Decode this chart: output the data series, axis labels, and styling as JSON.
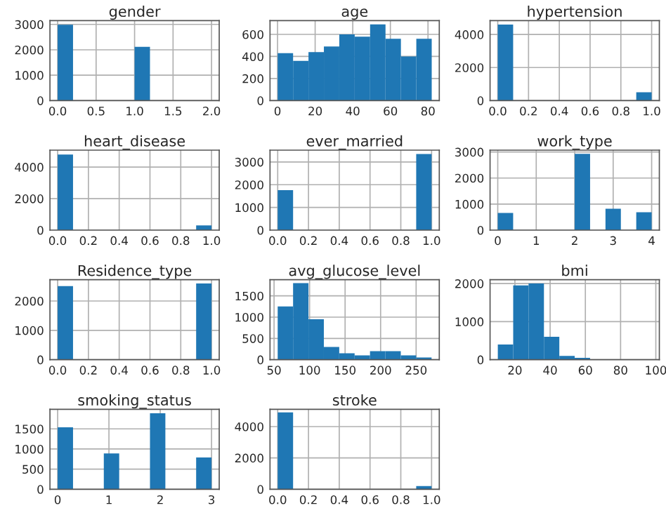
{
  "chart_data": [
    {
      "type": "histogram",
      "title": "gender",
      "bins": [
        0,
        0.2,
        0.4,
        0.6,
        0.8,
        1.0,
        1.2,
        1.4,
        1.6,
        1.8,
        2.0
      ],
      "values": [
        2990,
        0,
        0,
        0,
        0,
        2120,
        0,
        0,
        0,
        0
      ],
      "xlim": [
        -0.1,
        2.1
      ],
      "ylim": [
        0,
        3150
      ],
      "xticks": [
        {
          "value": 0,
          "label": "0.0"
        },
        {
          "value": 0.5,
          "label": "0.5"
        },
        {
          "value": 1,
          "label": "1.0"
        },
        {
          "value": 1.5,
          "label": "1.5"
        },
        {
          "value": 2,
          "label": "2.0"
        }
      ],
      "yticks": [
        0,
        1000,
        2000,
        3000
      ],
      "grid": true,
      "color": "#1f77b4"
    },
    {
      "type": "histogram",
      "title": "age",
      "bins": [
        0.08,
        8.27,
        16.46,
        24.65,
        32.84,
        41.03,
        49.22,
        57.41,
        65.6,
        73.79,
        81.98
      ],
      "values": [
        430,
        360,
        440,
        490,
        600,
        580,
        690,
        560,
        400,
        560
      ],
      "xlim": [
        -4,
        86
      ],
      "ylim": [
        0,
        725
      ],
      "xticks": [
        0,
        20,
        40,
        60,
        80
      ],
      "yticks": [
        0,
        200,
        400,
        600
      ],
      "grid": true,
      "color": "#1f77b4"
    },
    {
      "type": "histogram",
      "title": "hypertension",
      "bins": [
        0,
        0.1,
        0.2,
        0.3,
        0.4,
        0.5,
        0.6,
        0.7,
        0.8,
        0.9,
        1.0
      ],
      "values": [
        4600,
        0,
        0,
        0,
        0,
        0,
        0,
        0,
        0,
        500
      ],
      "xlim": [
        -0.05,
        1.05
      ],
      "ylim": [
        0,
        4840
      ],
      "xticks": [
        {
          "value": 0,
          "label": "0.0"
        },
        {
          "value": 0.2,
          "label": "0.2"
        },
        {
          "value": 0.4,
          "label": "0.4"
        },
        {
          "value": 0.6,
          "label": "0.6"
        },
        {
          "value": 0.8,
          "label": "0.8"
        },
        {
          "value": 1,
          "label": "1.0"
        }
      ],
      "yticks": [
        0,
        2000,
        4000
      ],
      "grid": true,
      "color": "#1f77b4"
    },
    {
      "type": "histogram",
      "title": "heart_disease",
      "bins": [
        0,
        0.1,
        0.2,
        0.3,
        0.4,
        0.5,
        0.6,
        0.7,
        0.8,
        0.9,
        1.0
      ],
      "values": [
        4800,
        0,
        0,
        0,
        0,
        0,
        0,
        0,
        0,
        300
      ],
      "xlim": [
        -0.05,
        1.05
      ],
      "ylim": [
        0,
        5075
      ],
      "xticks": [
        {
          "value": 0,
          "label": "0.0"
        },
        {
          "value": 0.2,
          "label": "0.2"
        },
        {
          "value": 0.4,
          "label": "0.4"
        },
        {
          "value": 0.6,
          "label": "0.6"
        },
        {
          "value": 0.8,
          "label": "0.8"
        },
        {
          "value": 1,
          "label": "1.0"
        }
      ],
      "yticks": [
        0,
        2000,
        4000
      ],
      "grid": true,
      "color": "#1f77b4"
    },
    {
      "type": "histogram",
      "title": "ever_married",
      "bins": [
        0,
        0.1,
        0.2,
        0.3,
        0.4,
        0.5,
        0.6,
        0.7,
        0.8,
        0.9,
        1.0
      ],
      "values": [
        1760,
        0,
        0,
        0,
        0,
        0,
        0,
        0,
        0,
        3350
      ],
      "xlim": [
        -0.05,
        1.05
      ],
      "ylim": [
        0,
        3520
      ],
      "xticks": [
        {
          "value": 0,
          "label": "0.0"
        },
        {
          "value": 0.2,
          "label": "0.2"
        },
        {
          "value": 0.4,
          "label": "0.4"
        },
        {
          "value": 0.6,
          "label": "0.6"
        },
        {
          "value": 0.8,
          "label": "0.8"
        },
        {
          "value": 1,
          "label": "1.0"
        }
      ],
      "yticks": [
        0,
        1000,
        2000,
        3000
      ],
      "grid": true,
      "color": "#1f77b4"
    },
    {
      "type": "histogram",
      "title": "work_type",
      "bins": [
        0,
        0.4,
        0.8,
        1.2,
        1.6,
        2.0,
        2.4,
        2.8,
        3.2,
        3.6,
        4.0
      ],
      "values": [
        660,
        0,
        null,
        0,
        0,
        2930,
        0,
        820,
        0,
        690
      ],
      "xlim": [
        -0.2,
        4.2
      ],
      "ylim": [
        0,
        3070
      ],
      "xticks": [
        0,
        1,
        2,
        3,
        4
      ],
      "yticks": [
        0,
        1000,
        2000,
        3000
      ],
      "grid": true,
      "color": "#1f77b4"
    },
    {
      "type": "histogram",
      "title": "Residence_type",
      "bins": [
        0,
        0.1,
        0.2,
        0.3,
        0.4,
        0.5,
        0.6,
        0.7,
        0.8,
        0.9,
        1.0
      ],
      "values": [
        2510,
        0,
        0,
        0,
        0,
        0,
        0,
        0,
        0,
        2600
      ],
      "xlim": [
        -0.05,
        1.05
      ],
      "ylim": [
        0,
        2726
      ],
      "xticks": [
        {
          "value": 0,
          "label": "0.0"
        },
        {
          "value": 0.2,
          "label": "0.2"
        },
        {
          "value": 0.4,
          "label": "0.4"
        },
        {
          "value": 0.6,
          "label": "0.6"
        },
        {
          "value": 0.8,
          "label": "0.8"
        },
        {
          "value": 1,
          "label": "1.0"
        }
      ],
      "yticks": [
        0,
        1000,
        2000
      ],
      "grid": true,
      "color": "#1f77b4"
    },
    {
      "type": "histogram",
      "title": "avg_glucose_level",
      "bins": [
        55.12,
        76.78,
        98.44,
        120.1,
        141.76,
        163.42,
        185.08,
        206.74,
        228.4,
        250.06,
        271.74
      ],
      "values": [
        1250,
        1800,
        950,
        300,
        150,
        100,
        200,
        200,
        100,
        50
      ],
      "xlim": [
        44.3,
        282.6
      ],
      "ylim": [
        0,
        1880
      ],
      "xticks": [
        50,
        100,
        150,
        200,
        250
      ],
      "yticks": [
        0,
        500,
        1000,
        1500
      ],
      "grid": true,
      "color": "#1f77b4"
    },
    {
      "type": "histogram",
      "title": "bmi",
      "bins": [
        10.3,
        19.03,
        27.76,
        36.49,
        45.22,
        53.95,
        62.68,
        71.41,
        80.14,
        88.87,
        97.6
      ],
      "values": [
        400,
        1950,
        2000,
        600,
        100,
        50,
        null,
        null,
        0,
        null
      ],
      "xlim": [
        5.9,
        102
      ],
      "ylim": [
        0,
        2100
      ],
      "xticks": [
        20,
        40,
        60,
        80,
        100
      ],
      "yticks": [
        0,
        1000,
        2000
      ],
      "grid": true,
      "color": "#1f77b4"
    },
    {
      "type": "histogram",
      "title": "smoking_status",
      "bins": [
        0,
        0.3,
        0.6,
        0.9,
        1.2,
        1.5,
        1.8,
        2.1,
        2.4,
        2.7,
        3.0
      ],
      "values": [
        1540,
        0,
        0,
        890,
        0,
        0,
        1890,
        0,
        0,
        790
      ],
      "xlim": [
        -0.15,
        3.15
      ],
      "ylim": [
        0,
        1987
      ],
      "xticks": [
        0,
        1,
        2,
        3
      ],
      "yticks": [
        0,
        500,
        1000,
        1500
      ],
      "grid": true,
      "color": "#1f77b4"
    },
    {
      "type": "histogram",
      "title": "stroke",
      "bins": [
        0,
        0.1,
        0.2,
        0.3,
        0.4,
        0.5,
        0.6,
        0.7,
        0.8,
        0.9,
        1.0
      ],
      "values": [
        4900,
        0,
        0,
        0,
        0,
        0,
        0,
        0,
        0,
        200
      ],
      "xlim": [
        -0.05,
        1.05
      ],
      "ylim": [
        0,
        5104
      ],
      "xticks": [
        {
          "value": 0,
          "label": "0.0"
        },
        {
          "value": 0.2,
          "label": "0.2"
        },
        {
          "value": 0.4,
          "label": "0.4"
        },
        {
          "value": 0.6,
          "label": "0.6"
        },
        {
          "value": 0.8,
          "label": "0.8"
        },
        {
          "value": 1,
          "label": "1.0"
        }
      ],
      "yticks": [
        0,
        2000,
        4000
      ],
      "grid": true,
      "color": "#1f77b4"
    }
  ]
}
